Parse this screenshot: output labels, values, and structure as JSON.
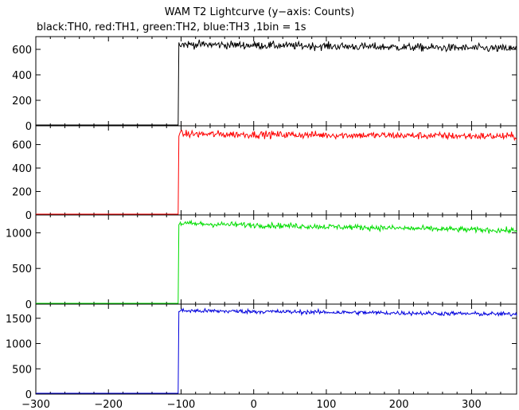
{
  "title": "WAM T2 Lightcurve (y−axis: Counts)",
  "subtitle": "black:TH0, red:TH1, green:TH2, blue:TH3 ,1bin = 1s",
  "chart_data": {
    "type": "line",
    "x_range": [
      -300,
      362
    ],
    "x_ticks": [
      -300,
      -200,
      -100,
      0,
      100,
      200,
      300
    ],
    "x_tick_labels": [
      "−300",
      "−200",
      "−100",
      "0",
      "100",
      "200",
      "300"
    ],
    "step_x": -103,
    "series": [
      {
        "name": "TH0",
        "color": "#000000",
        "ylim": [
          0,
          700
        ],
        "yticks": [
          0,
          200,
          400,
          600
        ],
        "pre_level": 3,
        "post_level_start": 640,
        "post_level_end": 605,
        "noise": 22
      },
      {
        "name": "TH1",
        "color": "#ff0000",
        "ylim": [
          0,
          760
        ],
        "yticks": [
          0,
          200,
          400,
          600
        ],
        "pre_level": 3,
        "post_level_start": 690,
        "post_level_end": 670,
        "noise": 22
      },
      {
        "name": "TH2",
        "color": "#00dd00",
        "ylim": [
          0,
          1250
        ],
        "yticks": [
          0,
          500,
          1000
        ],
        "pre_level": 3,
        "post_level_start": 1130,
        "post_level_end": 1030,
        "noise": 28
      },
      {
        "name": "TH3",
        "color": "#0000dd",
        "ylim": [
          0,
          1780
        ],
        "yticks": [
          0,
          500,
          1000,
          1500
        ],
        "pre_level": 3,
        "post_level_start": 1650,
        "post_level_end": 1580,
        "noise": 30
      }
    ]
  }
}
